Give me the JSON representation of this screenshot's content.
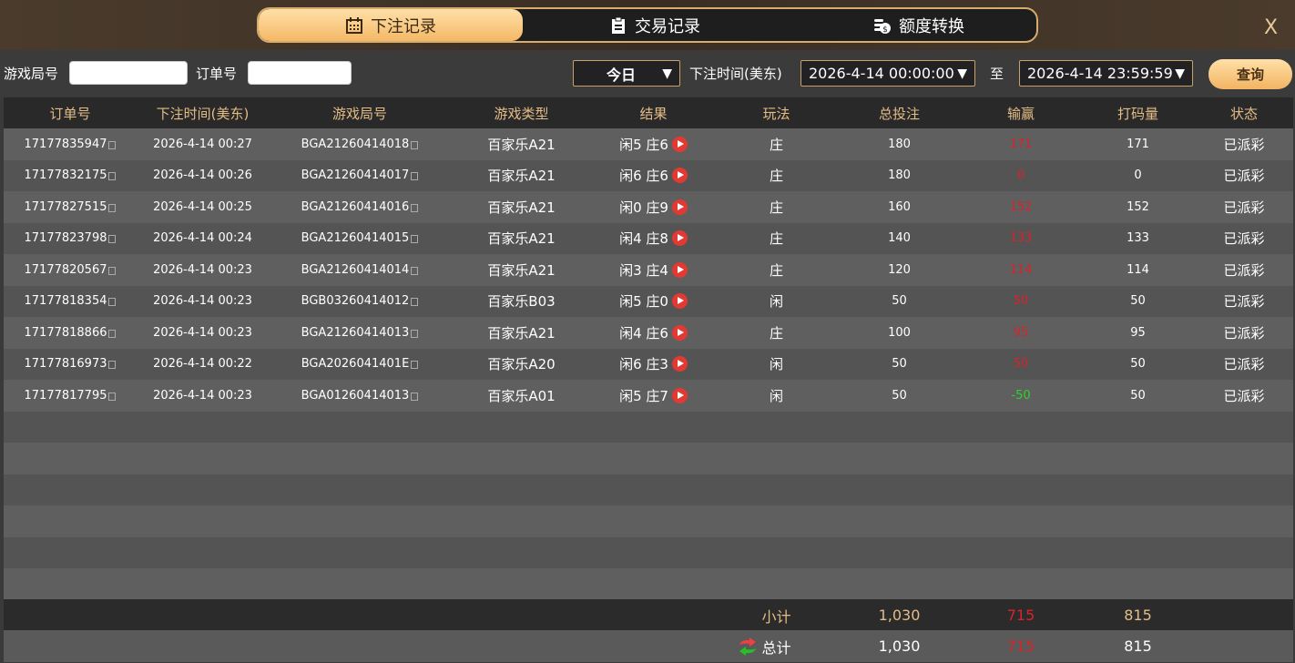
{
  "tabs": [
    {
      "label": "下注记录",
      "icon": "calendar-icon",
      "active": true
    },
    {
      "label": "交易记录",
      "icon": "clipboard-icon"
    },
    {
      "label": "额度转换",
      "icon": "coins-icon"
    }
  ],
  "close_label": "X",
  "filters": {
    "round_label": "游戏局号",
    "round_value": "",
    "order_label": "订单号",
    "order_value": "",
    "period": "今日",
    "time_label": "下注时间(美东)",
    "start": "2026-4-14 00:00:00",
    "to_label": "至",
    "end": "2026-4-14 23:59:59",
    "query": "查询"
  },
  "columns": [
    "订单号",
    "下注时间(美东)",
    "游戏局号",
    "游戏类型",
    "结果",
    "玩法",
    "总投注",
    "输赢",
    "打码量",
    "状态"
  ],
  "rows": [
    [
      "17177835947",
      "2026-4-14 00:27",
      "BGA21260414018",
      "百家乐A21",
      "闲5 庄6",
      "庄",
      "180",
      "171",
      "171",
      "已派彩"
    ],
    [
      "17177832175",
      "2026-4-14 00:26",
      "BGA21260414017",
      "百家乐A21",
      "闲6 庄6",
      "庄",
      "180",
      "0",
      "0",
      "已派彩"
    ],
    [
      "17177827515",
      "2026-4-14 00:25",
      "BGA21260414016",
      "百家乐A21",
      "闲0 庄9",
      "庄",
      "160",
      "152",
      "152",
      "已派彩"
    ],
    [
      "17177823798",
      "2026-4-14 00:24",
      "BGA21260414015",
      "百家乐A21",
      "闲4 庄8",
      "庄",
      "140",
      "133",
      "133",
      "已派彩"
    ],
    [
      "17177820567",
      "2026-4-14 00:23",
      "BGA21260414014",
      "百家乐A21",
      "闲3 庄4",
      "庄",
      "120",
      "114",
      "114",
      "已派彩"
    ],
    [
      "17177818354",
      "2026-4-14 00:23",
      "BGB03260414012",
      "百家乐B03",
      "闲5 庄0",
      "闲",
      "50",
      "50",
      "50",
      "已派彩"
    ],
    [
      "17177818866",
      "2026-4-14 00:23",
      "BGA21260414013",
      "百家乐A21",
      "闲4 庄6",
      "庄",
      "100",
      "95",
      "95",
      "已派彩"
    ],
    [
      "17177816973",
      "2026-4-14 00:22",
      "BGA2026041401E",
      "百家乐A20",
      "闲6 庄3",
      "闲",
      "50",
      "50",
      "50",
      "已派彩"
    ],
    [
      "17177817795",
      "2026-4-14 00:23",
      "BGA01260414013",
      "百家乐A01",
      "闲5 庄7",
      "闲",
      "50",
      "-50",
      "50",
      "已派彩"
    ]
  ],
  "subtotal": {
    "label": "小计",
    "bet": "1,030",
    "winloss": "715",
    "turnover": "815"
  },
  "total": {
    "label": "总计",
    "bet": "1,030",
    "winloss": "715",
    "turnover": "815",
    "icon": "refresh-arrows-icon"
  },
  "colors": {
    "win": "#d8232a",
    "loss": "#2fd02f",
    "accent": "#e3bc86"
  }
}
